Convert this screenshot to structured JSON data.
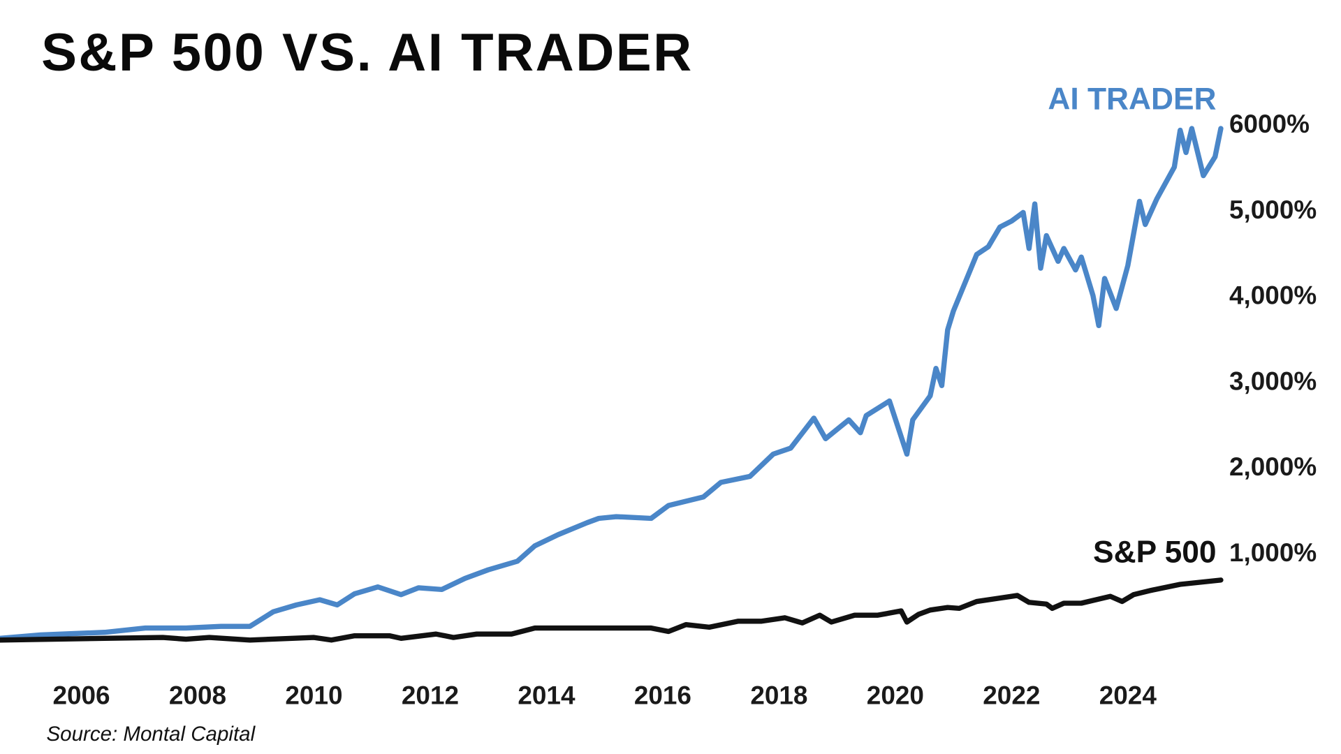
{
  "chart_data": {
    "type": "line",
    "title": "S&P 500 VS. AI TRADER",
    "source": "Source: Montal Capital",
    "xlim": [
      2004.6,
      2025.7
    ],
    "xticks": [
      2006,
      2008,
      2010,
      2012,
      2014,
      2016,
      2018,
      2020,
      2022,
      2024
    ],
    "ylim": [
      0,
      6000
    ],
    "yticks": [
      {
        "value": 1000,
        "label": "1,000%"
      },
      {
        "value": 2000,
        "label": "2,000%"
      },
      {
        "value": 3000,
        "label": "3,000%"
      },
      {
        "value": 4000,
        "label": "4,000%"
      },
      {
        "value": 5000,
        "label": "5,000%"
      },
      {
        "value": 6000,
        "label": "6000%"
      }
    ],
    "grid": false,
    "series": [
      {
        "name": "AI TRADER",
        "color": "#4a86c8",
        "x": [
          2004.6,
          2005.3,
          2006.4,
          2007.1,
          2007.8,
          2008.4,
          2008.9,
          2009.3,
          2009.7,
          2010.1,
          2010.4,
          2010.7,
          2011.1,
          2011.5,
          2011.8,
          2012.2,
          2012.6,
          2013.0,
          2013.5,
          2013.8,
          2014.2,
          2014.7,
          2014.9,
          2015.2,
          2015.8,
          2016.1,
          2016.4,
          2016.7,
          2017.0,
          2017.5,
          2017.9,
          2018.2,
          2018.6,
          2018.8,
          2019.2,
          2019.4,
          2019.5,
          2019.9,
          2020.2,
          2020.3,
          2020.6,
          2020.7,
          2020.8,
          2020.9,
          2021.0,
          2021.4,
          2021.6,
          2021.8,
          2022.0,
          2022.2,
          2022.3,
          2022.4,
          2022.5,
          2022.6,
          2022.8,
          2022.9,
          2023.1,
          2023.2,
          2023.4,
          2023.5,
          2023.6,
          2023.8,
          2024.0,
          2024.2,
          2024.3,
          2024.5,
          2024.8,
          2024.9,
          2025.0,
          2025.1,
          2025.3,
          2025.5,
          2025.6
        ],
        "values": [
          20,
          60,
          90,
          140,
          140,
          160,
          160,
          330,
          410,
          470,
          410,
          540,
          620,
          530,
          610,
          590,
          720,
          820,
          920,
          1100,
          1230,
          1370,
          1420,
          1440,
          1420,
          1570,
          1620,
          1670,
          1840,
          1910,
          2170,
          2240,
          2590,
          2350,
          2570,
          2420,
          2620,
          2790,
          2170,
          2570,
          2850,
          3170,
          2970,
          3620,
          3840,
          4500,
          4590,
          4820,
          4890,
          4990,
          4570,
          5090,
          4340,
          4720,
          4420,
          4570,
          4320,
          4470,
          4020,
          3670,
          4220,
          3870,
          4370,
          5120,
          4850,
          5150,
          5520,
          5950,
          5690,
          5970,
          5420,
          5640,
          5970
        ]
      },
      {
        "name": "S&P 500",
        "color": "#111111",
        "x": [
          2004.6,
          2006.4,
          2007.4,
          2007.8,
          2008.2,
          2008.9,
          2010.0,
          2010.3,
          2010.7,
          2011.3,
          2011.5,
          2012.1,
          2012.4,
          2012.8,
          2013.4,
          2013.8,
          2015.8,
          2016.1,
          2016.4,
          2016.8,
          2017.3,
          2017.7,
          2018.1,
          2018.4,
          2018.7,
          2018.9,
          2019.3,
          2019.7,
          2020.1,
          2020.2,
          2020.4,
          2020.6,
          2020.9,
          2021.1,
          2021.4,
          2021.8,
          2022.1,
          2022.3,
          2022.6,
          2022.7,
          2022.9,
          2023.2,
          2023.7,
          2023.9,
          2024.1,
          2024.4,
          2024.9,
          2025.6
        ],
        "values": [
          0,
          20,
          30,
          10,
          30,
          0,
          30,
          0,
          50,
          50,
          20,
          70,
          30,
          70,
          70,
          140,
          140,
          100,
          180,
          150,
          220,
          220,
          260,
          200,
          290,
          210,
          290,
          290,
          340,
          210,
          300,
          350,
          380,
          370,
          450,
          490,
          520,
          440,
          420,
          370,
          430,
          430,
          510,
          450,
          530,
          580,
          650,
          700
        ]
      }
    ]
  }
}
